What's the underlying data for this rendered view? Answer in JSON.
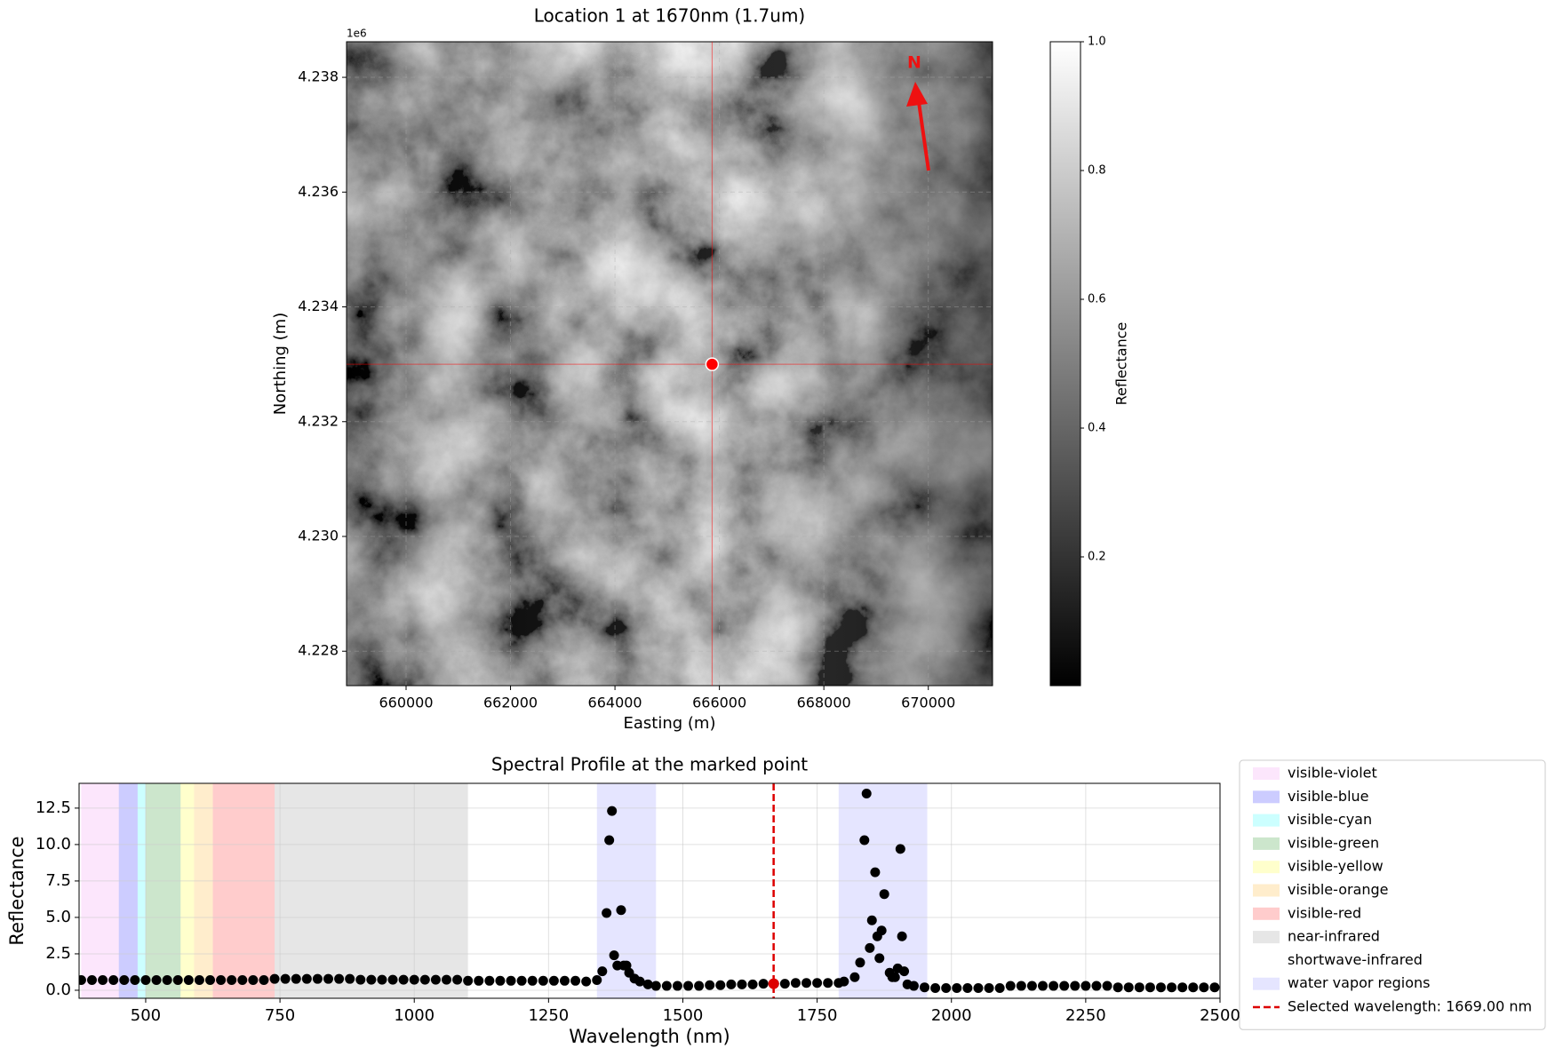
{
  "chart_data": [
    {
      "type": "image",
      "title": "Location 1 at 1670nm (1.7um)",
      "x_label": "Easting (m)",
      "y_label": "Northing (m)",
      "y_offset_label": "1e6",
      "xlim": [
        658860,
        671230
      ],
      "xticks": [
        660000,
        662000,
        664000,
        666000,
        668000,
        670000
      ],
      "ylim": [
        4227400,
        4238620
      ],
      "yticks": [
        {
          "value": 4228000,
          "label": "4.228"
        },
        {
          "value": 4230000,
          "label": "4.230"
        },
        {
          "value": 4232000,
          "label": "4.232"
        },
        {
          "value": 4234000,
          "label": "4.234"
        },
        {
          "value": 4236000,
          "label": "4.236"
        },
        {
          "value": 4238000,
          "label": "4.238"
        }
      ],
      "grid": true,
      "cmap": "gray",
      "marker": {
        "x": 665860,
        "y": 4233000,
        "color": "#ff0000"
      },
      "north_label": "N",
      "colorbar": {
        "label": "Reflectance",
        "lim": [
          0,
          1
        ],
        "ticks": [
          0.2,
          0.4,
          0.6,
          0.8,
          {
            "value": 1,
            "label": "1.0"
          }
        ]
      }
    },
    {
      "type": "scatter",
      "title": "Spectral Profile at the marked point",
      "x_label": "Wavelength (nm)",
      "y_label": "Reflectance",
      "xlim": [
        376,
        2500
      ],
      "xticks": [
        500,
        750,
        1000,
        1250,
        1500,
        1750,
        2000,
        2250,
        2500
      ],
      "ylim": [
        -0.55,
        14.2
      ],
      "yticks": [
        {
          "value": 0,
          "label": "0.0"
        },
        2.5,
        {
          "value": 5,
          "label": "5.0"
        },
        7.5,
        {
          "value": 10,
          "label": "10.0"
        },
        12.5
      ],
      "grid": true,
      "legend": "outside right",
      "regions": [
        {
          "name": "visible-violet",
          "color": "#ee82ee",
          "alpha": 0.2,
          "ranges": [
            [
              380,
              450
            ]
          ]
        },
        {
          "name": "visible-blue",
          "color": "#0000ff",
          "alpha": 0.2,
          "ranges": [
            [
              450,
              485
            ]
          ]
        },
        {
          "name": "visible-cyan",
          "color": "#00ffff",
          "alpha": 0.2,
          "ranges": [
            [
              485,
              500
            ]
          ]
        },
        {
          "name": "visible-green",
          "color": "#008000",
          "alpha": 0.2,
          "ranges": [
            [
              500,
              565
            ]
          ]
        },
        {
          "name": "visible-yellow",
          "color": "#ffff00",
          "alpha": 0.2,
          "ranges": [
            [
              565,
              590
            ]
          ]
        },
        {
          "name": "visible-orange",
          "color": "#ffa500",
          "alpha": 0.2,
          "ranges": [
            [
              590,
              625
            ]
          ]
        },
        {
          "name": "visible-red",
          "color": "#ff0000",
          "alpha": 0.2,
          "ranges": [
            [
              625,
              740
            ]
          ]
        },
        {
          "name": "near-infrared",
          "color": "#808080",
          "alpha": 0.2,
          "ranges": [
            [
              740,
              1100
            ]
          ]
        },
        {
          "name": "shortwave-infrared",
          "color": "#ffffff",
          "alpha": 0.2,
          "ranges": [
            [
              1100,
              2500
            ]
          ]
        },
        {
          "name": "water vapor regions",
          "color": "#0000ff",
          "alpha": 0.1,
          "ranges": [
            [
              1340,
              1450
            ],
            [
              1790,
              1955
            ]
          ]
        }
      ],
      "series": [
        {
          "color": "#000000",
          "x": [
            380,
            400,
            420,
            440,
            460,
            480,
            500,
            520,
            540,
            560,
            580,
            600,
            620,
            640,
            660,
            680,
            700,
            720,
            740,
            760,
            780,
            800,
            820,
            840,
            860,
            880,
            900,
            920,
            940,
            960,
            980,
            1000,
            1020,
            1040,
            1060,
            1080,
            1100,
            1120,
            1140,
            1160,
            1180,
            1200,
            1220,
            1240,
            1260,
            1280,
            1300,
            1320,
            1340,
            1350,
            1358,
            1363,
            1368,
            1372,
            1378,
            1385,
            1390,
            1395,
            1400,
            1410,
            1420,
            1435,
            1450,
            1470,
            1490,
            1510,
            1530,
            1550,
            1570,
            1590,
            1610,
            1630,
            1650,
            1670,
            1690,
            1710,
            1730,
            1750,
            1770,
            1790,
            1800,
            1820,
            1830,
            1838,
            1842,
            1848,
            1852,
            1858,
            1862,
            1866,
            1870,
            1875,
            1885,
            1890,
            1895,
            1900,
            1905,
            1908,
            1912,
            1918,
            1930,
            1950,
            1970,
            1990,
            2010,
            2030,
            2050,
            2070,
            2090,
            2110,
            2130,
            2150,
            2170,
            2190,
            2210,
            2230,
            2250,
            2270,
            2290,
            2310,
            2330,
            2350,
            2370,
            2390,
            2410,
            2430,
            2450,
            2470,
            2490
          ],
          "values": [
            0.7,
            0.7,
            0.7,
            0.7,
            0.7,
            0.7,
            0.7,
            0.7,
            0.7,
            0.7,
            0.7,
            0.7,
            0.7,
            0.7,
            0.7,
            0.7,
            0.7,
            0.7,
            0.78,
            0.78,
            0.78,
            0.78,
            0.78,
            0.78,
            0.78,
            0.78,
            0.72,
            0.72,
            0.72,
            0.72,
            0.72,
            0.72,
            0.72,
            0.72,
            0.72,
            0.72,
            0.65,
            0.65,
            0.65,
            0.65,
            0.65,
            0.65,
            0.65,
            0.65,
            0.65,
            0.65,
            0.65,
            0.6,
            0.7,
            1.3,
            5.3,
            10.3,
            12.3,
            2.4,
            1.7,
            5.5,
            1.7,
            1.7,
            1.2,
            0.8,
            0.6,
            0.4,
            0.3,
            0.3,
            0.3,
            0.3,
            0.3,
            0.35,
            0.35,
            0.4,
            0.4,
            0.4,
            0.45,
            0.45,
            0.45,
            0.5,
            0.5,
            0.5,
            0.5,
            0.5,
            0.6,
            0.9,
            1.9,
            10.3,
            13.5,
            2.9,
            4.8,
            8.1,
            3.7,
            2.2,
            4.1,
            6.6,
            1.2,
            0.9,
            0.9,
            1.5,
            9.7,
            3.7,
            1.3,
            0.4,
            0.3,
            0.2,
            0.15,
            0.15,
            0.15,
            0.15,
            0.15,
            0.15,
            0.15,
            0.3,
            0.3,
            0.3,
            0.3,
            0.3,
            0.3,
            0.3,
            0.3,
            0.3,
            0.3,
            0.2,
            0.2,
            0.2,
            0.2,
            0.2,
            0.2,
            0.2,
            0.2,
            0.2,
            0.2
          ]
        }
      ],
      "selected": {
        "name": "Selected wavelength: 1669.00 nm",
        "x": 1669,
        "value": 0.45,
        "color": "#dd0000"
      }
    }
  ]
}
